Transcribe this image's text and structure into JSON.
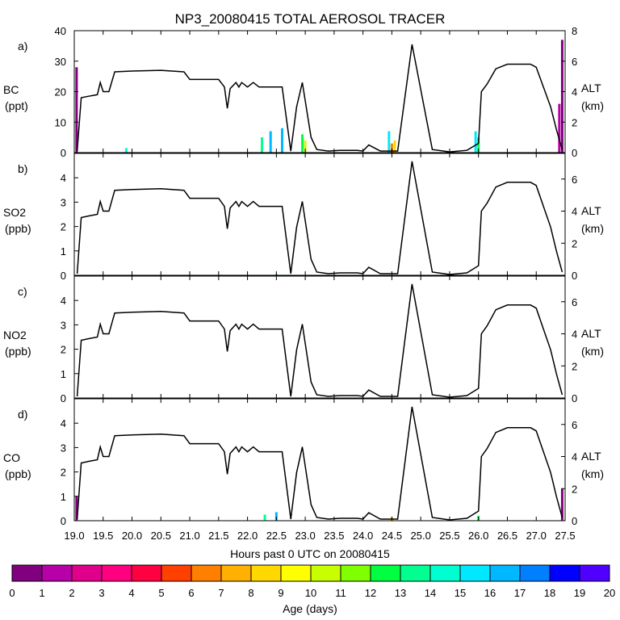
{
  "title": "NP3_20080415 TOTAL AEROSOL TRACER",
  "xlabel": "Hours past 0 UTC on 20080415",
  "x_ticks": [
    "19.0",
    "19.5",
    "20.0",
    "20.5",
    "21.0",
    "21.5",
    "22.0",
    "22.5",
    "23.0",
    "23.5",
    "24.0",
    "24.5",
    "25.0",
    "25.5",
    "26.0",
    "26.5",
    "27.0",
    "27.5"
  ],
  "colorbar": {
    "label": "Age (days)",
    "ticks": [
      "0",
      "1",
      "2",
      "3",
      "4",
      "5",
      "6",
      "7",
      "8",
      "9",
      "10",
      "11",
      "12",
      "13",
      "14",
      "15",
      "16",
      "17",
      "18",
      "19",
      "20"
    ],
    "colors": [
      "#800080",
      "#b800a8",
      "#e0008c",
      "#ff0080",
      "#ff0040",
      "#ff4000",
      "#ff8000",
      "#ffb000",
      "#ffd800",
      "#ffff00",
      "#c8ff00",
      "#80ff00",
      "#00ff40",
      "#00ff90",
      "#00ffd0",
      "#00e8ff",
      "#00b8ff",
      "#0080ff",
      "#0000ff",
      "#5000ff"
    ]
  },
  "chart_data": [
    {
      "type": "area",
      "panel": "a)",
      "ylabel": "BC",
      "yunit": "(ppt)",
      "ylabel_right": "ALT",
      "yunit_right": "(km)",
      "ylim": [
        0,
        40
      ],
      "yticks": [
        0,
        10,
        20,
        30,
        40
      ],
      "y2lim": [
        0,
        8
      ],
      "y2ticks": [
        0,
        2,
        4,
        6,
        8
      ],
      "xlim": [
        19.0,
        27.5
      ],
      "altitude": [
        [
          19.05,
          0.1
        ],
        [
          19.12,
          3.6
        ],
        [
          19.25,
          3.7
        ],
        [
          19.4,
          3.8
        ],
        [
          19.45,
          4.6
        ],
        [
          19.5,
          4.0
        ],
        [
          19.6,
          4.0
        ],
        [
          19.7,
          5.3
        ],
        [
          20.0,
          5.35
        ],
        [
          20.5,
          5.4
        ],
        [
          20.9,
          5.3
        ],
        [
          21.0,
          4.8
        ],
        [
          21.5,
          4.8
        ],
        [
          21.6,
          4.3
        ],
        [
          21.65,
          2.9
        ],
        [
          21.7,
          4.2
        ],
        [
          21.8,
          4.6
        ],
        [
          21.85,
          4.3
        ],
        [
          21.9,
          4.6
        ],
        [
          22.0,
          4.3
        ],
        [
          22.1,
          4.6
        ],
        [
          22.2,
          4.3
        ],
        [
          22.6,
          4.3
        ],
        [
          22.75,
          0.1
        ],
        [
          22.85,
          3.0
        ],
        [
          22.95,
          4.6
        ],
        [
          23.1,
          1.0
        ],
        [
          23.2,
          0.2
        ],
        [
          23.4,
          0.1
        ],
        [
          23.6,
          0.15
        ],
        [
          23.9,
          0.15
        ],
        [
          24.0,
          0.1
        ],
        [
          24.1,
          0.5
        ],
        [
          24.3,
          0.1
        ],
        [
          24.6,
          0.1
        ],
        [
          24.85,
          7.1
        ],
        [
          25.2,
          0.2
        ],
        [
          25.5,
          0.05
        ],
        [
          25.8,
          0.15
        ],
        [
          26.0,
          0.6
        ],
        [
          26.05,
          4.0
        ],
        [
          26.15,
          4.5
        ],
        [
          26.3,
          5.5
        ],
        [
          26.5,
          5.8
        ],
        [
          26.9,
          5.8
        ],
        [
          27.0,
          5.6
        ],
        [
          27.25,
          3.0
        ],
        [
          27.35,
          1.5
        ],
        [
          27.45,
          0.2
        ]
      ],
      "tracer": [
        {
          "x": 19.04,
          "value": 28.0,
          "color": "#800080"
        },
        {
          "x": 19.9,
          "value": 1.5,
          "color": "#00ffd0"
        },
        {
          "x": 22.25,
          "value": 5.0,
          "color": "#00ff90"
        },
        {
          "x": 22.4,
          "value": 7.0,
          "color": "#00b8ff"
        },
        {
          "x": 22.6,
          "value": 8.0,
          "color": "#00b8ff"
        },
        {
          "x": 22.95,
          "value": 6.0,
          "color": "#00ff40"
        },
        {
          "x": 23.0,
          "value": 4.0,
          "color": "#c8ff00"
        },
        {
          "x": 24.45,
          "value": 7.0,
          "color": "#00e8ff"
        },
        {
          "x": 24.5,
          "value": 3.0,
          "color": "#ff8000"
        },
        {
          "x": 24.55,
          "value": 4.0,
          "color": "#ffd800"
        },
        {
          "x": 25.95,
          "value": 7.0,
          "color": "#00e8ff"
        },
        {
          "x": 26.0,
          "value": 5.0,
          "color": "#00ff40"
        },
        {
          "x": 27.4,
          "value": 16.0,
          "color": "#b800a8"
        },
        {
          "x": 27.45,
          "value": 37.0,
          "color": "#800080"
        }
      ]
    },
    {
      "type": "area",
      "panel": "b)",
      "ylabel": "SO2",
      "yunit": "(ppb)",
      "ylabel_right": "ALT",
      "yunit_right": "(km)",
      "ylim": [
        0,
        5
      ],
      "yticks": [
        0,
        1,
        2,
        3,
        4
      ],
      "y2lim": [
        0,
        7.6
      ],
      "y2ticks": [
        0,
        2,
        4,
        6
      ],
      "xlim": [
        19.0,
        27.5
      ],
      "altitude": [
        [
          19.05,
          0.1
        ],
        [
          19.12,
          3.6
        ],
        [
          19.25,
          3.7
        ],
        [
          19.4,
          3.8
        ],
        [
          19.45,
          4.6
        ],
        [
          19.5,
          4.0
        ],
        [
          19.6,
          4.0
        ],
        [
          19.7,
          5.3
        ],
        [
          20.0,
          5.35
        ],
        [
          20.5,
          5.4
        ],
        [
          20.9,
          5.3
        ],
        [
          21.0,
          4.8
        ],
        [
          21.5,
          4.8
        ],
        [
          21.6,
          4.3
        ],
        [
          21.65,
          2.9
        ],
        [
          21.7,
          4.2
        ],
        [
          21.8,
          4.6
        ],
        [
          21.85,
          4.3
        ],
        [
          21.9,
          4.6
        ],
        [
          22.0,
          4.3
        ],
        [
          22.1,
          4.6
        ],
        [
          22.2,
          4.3
        ],
        [
          22.6,
          4.3
        ],
        [
          22.75,
          0.1
        ],
        [
          22.85,
          3.0
        ],
        [
          22.95,
          4.6
        ],
        [
          23.1,
          1.0
        ],
        [
          23.2,
          0.2
        ],
        [
          23.4,
          0.1
        ],
        [
          23.6,
          0.15
        ],
        [
          23.9,
          0.15
        ],
        [
          24.0,
          0.1
        ],
        [
          24.1,
          0.5
        ],
        [
          24.3,
          0.1
        ],
        [
          24.6,
          0.1
        ],
        [
          24.85,
          7.1
        ],
        [
          25.2,
          0.2
        ],
        [
          25.5,
          0.05
        ],
        [
          25.8,
          0.15
        ],
        [
          26.0,
          0.6
        ],
        [
          26.05,
          4.0
        ],
        [
          26.15,
          4.5
        ],
        [
          26.3,
          5.5
        ],
        [
          26.5,
          5.8
        ],
        [
          26.9,
          5.8
        ],
        [
          27.0,
          5.6
        ],
        [
          27.25,
          3.0
        ],
        [
          27.35,
          1.5
        ],
        [
          27.45,
          0.2
        ]
      ],
      "tracer": [
        {
          "x": 22.5,
          "value": 0.05,
          "color": "#00ff90"
        }
      ]
    },
    {
      "type": "area",
      "panel": "c)",
      "ylabel": "NO2",
      "yunit": "(ppb)",
      "ylabel_right": "ALT",
      "yunit_right": "(km)",
      "ylim": [
        0,
        5
      ],
      "yticks": [
        0,
        1,
        2,
        3,
        4
      ],
      "y2lim": [
        0,
        7.6
      ],
      "y2ticks": [
        0,
        2,
        4,
        6
      ],
      "xlim": [
        19.0,
        27.5
      ],
      "altitude": [
        [
          19.05,
          0.1
        ],
        [
          19.12,
          3.6
        ],
        [
          19.25,
          3.7
        ],
        [
          19.4,
          3.8
        ],
        [
          19.45,
          4.6
        ],
        [
          19.5,
          4.0
        ],
        [
          19.6,
          4.0
        ],
        [
          19.7,
          5.3
        ],
        [
          20.0,
          5.35
        ],
        [
          20.5,
          5.4
        ],
        [
          20.9,
          5.3
        ],
        [
          21.0,
          4.8
        ],
        [
          21.5,
          4.8
        ],
        [
          21.6,
          4.3
        ],
        [
          21.65,
          2.9
        ],
        [
          21.7,
          4.2
        ],
        [
          21.8,
          4.6
        ],
        [
          21.85,
          4.3
        ],
        [
          21.9,
          4.6
        ],
        [
          22.0,
          4.3
        ],
        [
          22.1,
          4.6
        ],
        [
          22.2,
          4.3
        ],
        [
          22.6,
          4.3
        ],
        [
          22.75,
          0.1
        ],
        [
          22.85,
          3.0
        ],
        [
          22.95,
          4.6
        ],
        [
          23.1,
          1.0
        ],
        [
          23.2,
          0.2
        ],
        [
          23.4,
          0.1
        ],
        [
          23.6,
          0.15
        ],
        [
          23.9,
          0.15
        ],
        [
          24.0,
          0.1
        ],
        [
          24.1,
          0.5
        ],
        [
          24.3,
          0.1
        ],
        [
          24.6,
          0.1
        ],
        [
          24.85,
          7.1
        ],
        [
          25.2,
          0.2
        ],
        [
          25.5,
          0.05
        ],
        [
          25.8,
          0.15
        ],
        [
          26.0,
          0.6
        ],
        [
          26.05,
          4.0
        ],
        [
          26.15,
          4.5
        ],
        [
          26.3,
          5.5
        ],
        [
          26.5,
          5.8
        ],
        [
          26.9,
          5.8
        ],
        [
          27.0,
          5.6
        ],
        [
          27.25,
          3.0
        ],
        [
          27.35,
          1.5
        ],
        [
          27.45,
          0.2
        ]
      ],
      "tracer": []
    },
    {
      "type": "area",
      "panel": "d)",
      "ylabel": "CO",
      "yunit": "(ppb)",
      "ylabel_right": "ALT",
      "yunit_right": "(km)",
      "ylim": [
        0,
        5
      ],
      "yticks": [
        0,
        1,
        2,
        3,
        4
      ],
      "y2lim": [
        0,
        7.6
      ],
      "y2ticks": [
        0,
        2,
        4,
        6
      ],
      "xlim": [
        19.0,
        27.5
      ],
      "altitude": [
        [
          19.05,
          0.1
        ],
        [
          19.12,
          3.6
        ],
        [
          19.25,
          3.7
        ],
        [
          19.4,
          3.8
        ],
        [
          19.45,
          4.6
        ],
        [
          19.5,
          4.0
        ],
        [
          19.6,
          4.0
        ],
        [
          19.7,
          5.3
        ],
        [
          20.0,
          5.35
        ],
        [
          20.5,
          5.4
        ],
        [
          20.9,
          5.3
        ],
        [
          21.0,
          4.8
        ],
        [
          21.5,
          4.8
        ],
        [
          21.6,
          4.3
        ],
        [
          21.65,
          2.9
        ],
        [
          21.7,
          4.2
        ],
        [
          21.8,
          4.6
        ],
        [
          21.85,
          4.3
        ],
        [
          21.9,
          4.6
        ],
        [
          22.0,
          4.3
        ],
        [
          22.1,
          4.6
        ],
        [
          22.2,
          4.3
        ],
        [
          22.6,
          4.3
        ],
        [
          22.75,
          0.1
        ],
        [
          22.85,
          3.0
        ],
        [
          22.95,
          4.6
        ],
        [
          23.1,
          1.0
        ],
        [
          23.2,
          0.2
        ],
        [
          23.4,
          0.1
        ],
        [
          23.6,
          0.15
        ],
        [
          23.9,
          0.15
        ],
        [
          24.0,
          0.1
        ],
        [
          24.1,
          0.5
        ],
        [
          24.3,
          0.1
        ],
        [
          24.6,
          0.1
        ],
        [
          24.85,
          7.1
        ],
        [
          25.2,
          0.2
        ],
        [
          25.5,
          0.05
        ],
        [
          25.8,
          0.15
        ],
        [
          26.0,
          0.6
        ],
        [
          26.05,
          4.0
        ],
        [
          26.15,
          4.5
        ],
        [
          26.3,
          5.5
        ],
        [
          26.5,
          5.8
        ],
        [
          26.9,
          5.8
        ],
        [
          27.0,
          5.6
        ],
        [
          27.25,
          3.0
        ],
        [
          27.35,
          1.5
        ],
        [
          27.45,
          0.2
        ]
      ],
      "tracer": [
        {
          "x": 19.04,
          "value": 1.0,
          "color": "#800080"
        },
        {
          "x": 22.3,
          "value": 0.25,
          "color": "#00ff90"
        },
        {
          "x": 22.5,
          "value": 0.35,
          "color": "#00b8ff"
        },
        {
          "x": 24.5,
          "value": 0.15,
          "color": "#ffd800"
        },
        {
          "x": 26.0,
          "value": 0.2,
          "color": "#00ff40"
        },
        {
          "x": 27.45,
          "value": 1.3,
          "color": "#800080"
        }
      ]
    }
  ]
}
